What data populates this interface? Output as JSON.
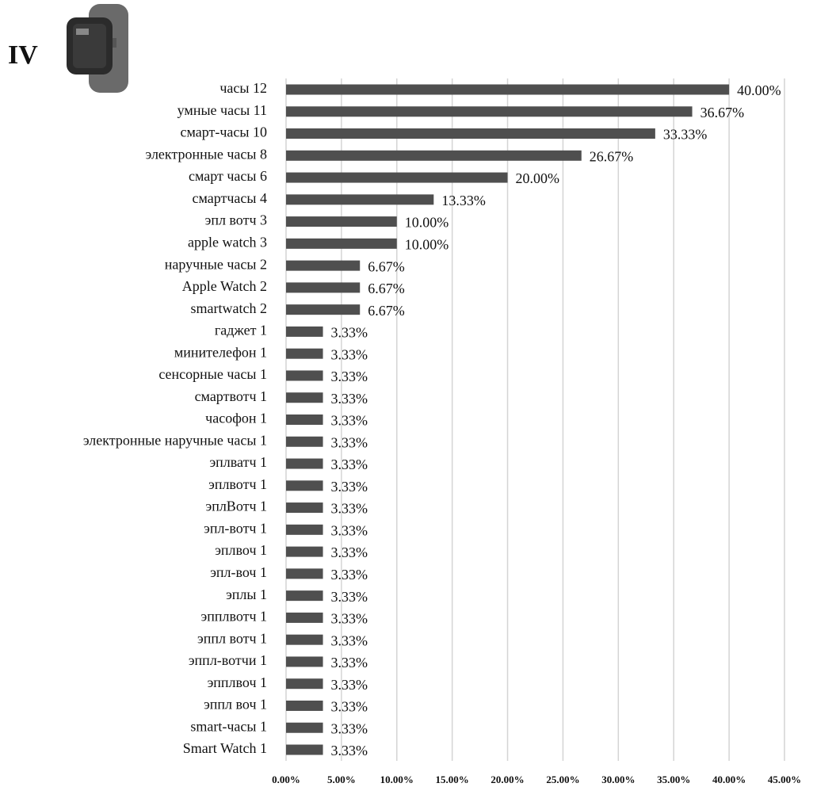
{
  "chart_data": {
    "type": "bar",
    "orientation": "horizontal",
    "title": "IV",
    "categories": [
      "часы 12",
      "умные часы 11",
      "смарт-часы 10",
      "электронные часы 8",
      "смарт часы 6",
      "смартчасы 4",
      "эпл вотч 3",
      "apple watch 3",
      "наручные часы 2",
      "Apple Watch 2",
      "smartwatch 2",
      "гаджет 1",
      "минителефон 1",
      "сенсорные часы 1",
      "смартвотч 1",
      "часофон 1",
      "электронные наручные часы 1",
      "эплватч 1",
      "эплвотч 1",
      "эплВотч 1",
      "эпл-вотч 1",
      "эплвоч 1",
      "эпл-воч 1",
      "эплы 1",
      "эпплвотч 1",
      "эппл вотч 1",
      "эппл-вотчи 1",
      "эпплвоч 1",
      "эппл воч 1",
      "smart-часы 1",
      "Smart Watch  1"
    ],
    "values": [
      40,
      36.67,
      33.33,
      26.67,
      20,
      13.33,
      10,
      10,
      6.67,
      6.67,
      6.67,
      3.33,
      3.33,
      3.33,
      3.33,
      3.33,
      3.33,
      3.33,
      3.33,
      3.33,
      3.33,
      3.33,
      3.33,
      3.33,
      3.33,
      3.33,
      3.33,
      3.33,
      3.33,
      3.33,
      3.33
    ],
    "value_labels": [
      "40.00%",
      "36.67%",
      "33.33%",
      "26.67%",
      "20.00%",
      "13.33%",
      "10.00%",
      "10.00%",
      "6.67%",
      "6.67%",
      "6.67%",
      "3.33%",
      "3.33%",
      "3.33%",
      "3.33%",
      "3.33%",
      "3.33%",
      "3.33%",
      "3.33%",
      "3.33%",
      "3.33%",
      "3.33%",
      "3.33%",
      "3.33%",
      "3.33%",
      "3.33%",
      "3.33%",
      "3.33%",
      "3.33%",
      "3.33%",
      "3.33%"
    ],
    "color": "#4f4f4f",
    "xlim": [
      0,
      45
    ],
    "xticks": [
      {
        "value": 0,
        "label": "0.00%"
      },
      {
        "value": 5,
        "label": "5.00%"
      },
      {
        "value": 10,
        "label": "10.00%"
      },
      {
        "value": 15,
        "label": "15.00%"
      },
      {
        "value": 20,
        "label": "20.00%"
      },
      {
        "value": 25,
        "label": "25.00%"
      },
      {
        "value": 30,
        "label": "30.00%"
      },
      {
        "value": 35,
        "label": "35.00%"
      },
      {
        "value": 40,
        "label": "40.00%"
      },
      {
        "value": 45,
        "label": "45.00%"
      }
    ],
    "grid": true
  }
}
